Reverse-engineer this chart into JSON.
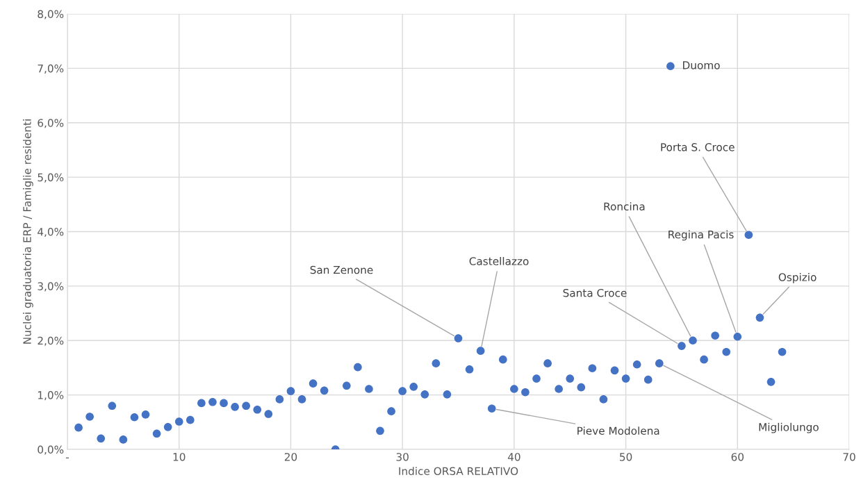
{
  "chart_data": {
    "type": "scatter",
    "xlabel": "Indice ORSA RELATIVO",
    "ylabel": "Nuclei graduatoria ERP / Famiglie residenti",
    "x": [
      1,
      2,
      3,
      4,
      5,
      6,
      7,
      8,
      9,
      10,
      11,
      12,
      13,
      14,
      15,
      16,
      17,
      18,
      19,
      20,
      21,
      22,
      23,
      24,
      25,
      26,
      27,
      28,
      29,
      30,
      31,
      32,
      33,
      34,
      35,
      36,
      37,
      38,
      39,
      40,
      41,
      42,
      43,
      44,
      45,
      46,
      47,
      48,
      49,
      50,
      51,
      52,
      53,
      54,
      55,
      56,
      57,
      58,
      59,
      60,
      61,
      62,
      63,
      64
    ],
    "series": [
      {
        "color": "#4472c4",
        "values": [
          0.4,
          0.6,
          0.2,
          0.8,
          0.18,
          0.59,
          0.64,
          0.29,
          0.41,
          0.51,
          0.54,
          0.85,
          0.87,
          0.85,
          0.78,
          0.8,
          0.73,
          0.65,
          0.92,
          1.07,
          0.92,
          1.21,
          1.08,
          0.0,
          1.17,
          1.51,
          1.11,
          0.34,
          0.7,
          1.07,
          1.15,
          1.01,
          1.58,
          1.01,
          2.04,
          1.47,
          1.81,
          0.75,
          1.65,
          1.11,
          1.05,
          1.3,
          1.58,
          1.11,
          1.3,
          1.14,
          1.49,
          0.92,
          1.45,
          1.3,
          1.56,
          1.28,
          1.58,
          7.04,
          1.9,
          2.0,
          1.65,
          2.09,
          1.79,
          2.07,
          3.94,
          2.42,
          1.24,
          1.79
        ]
      }
    ],
    "xlim": [
      0,
      70
    ],
    "xticks": [
      {
        "value": 0,
        "label": "-"
      },
      10,
      20,
      30,
      40,
      50,
      60,
      70
    ],
    "ylim": [
      0,
      8
    ],
    "yticks": [
      {
        "value": 0,
        "label": "0,0%"
      },
      {
        "value": 1,
        "label": "1,0%"
      },
      {
        "value": 2,
        "label": "2,0%"
      },
      {
        "value": 3,
        "label": "3,0%"
      },
      {
        "value": 4,
        "label": "4,0%"
      },
      {
        "value": 5,
        "label": "5,0%"
      },
      {
        "value": 6,
        "label": "6,0%"
      },
      {
        "value": 7,
        "label": "7,0%"
      },
      {
        "value": 8,
        "label": "8,0%"
      }
    ],
    "grid": true,
    "marker": "circle",
    "legend": false,
    "annotations": [
      {
        "text": "Duomo",
        "x": 54,
        "y": 7.04
      },
      {
        "text": "Porta S. Croce",
        "x": 61,
        "y": 3.94
      },
      {
        "text": "San Zenone",
        "x": 35,
        "y": 2.04
      },
      {
        "text": "Castellazzo",
        "x": 37,
        "y": 1.81
      },
      {
        "text": "Santa Croce",
        "x": 55,
        "y": 1.9
      },
      {
        "text": "Roncina",
        "x": 56,
        "y": 2.0
      },
      {
        "text": "Regina Pacis",
        "x": 60,
        "y": 2.07
      },
      {
        "text": "Ospizio",
        "x": 62,
        "y": 2.42
      },
      {
        "text": "Pieve Modolena",
        "x": 38,
        "y": 0.75
      },
      {
        "text": "Migliolungo",
        "x": 53,
        "y": 1.58
      }
    ]
  }
}
